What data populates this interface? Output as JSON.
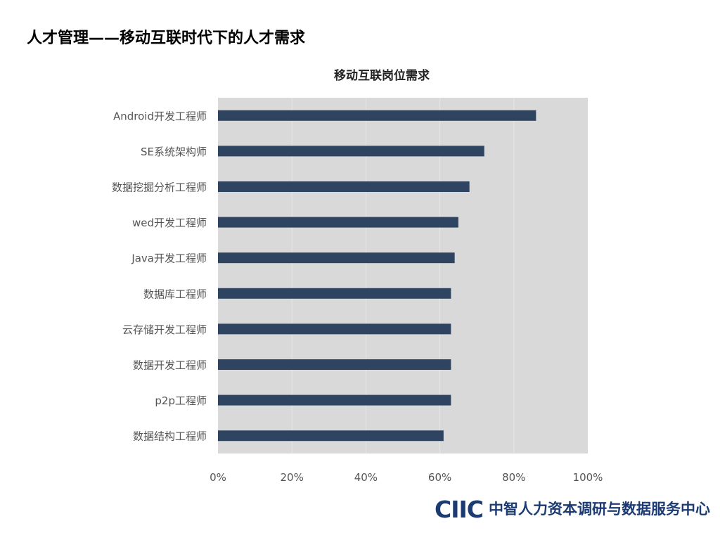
{
  "slide": {
    "title": "人才管理——移动互联时代下的人才需求"
  },
  "footer": {
    "logo": "CIIC",
    "org_name": "中智人力资本调研与数据服务中心"
  },
  "colors": {
    "bar": "#2e4461",
    "plot_background": "#d9d9d9",
    "gridline": "#e6e6e6"
  },
  "chart_data": {
    "type": "bar",
    "orientation": "horizontal",
    "title": "移动互联岗位需求",
    "xlabel": "",
    "ylabel": "",
    "categories": [
      "Android开发工程师",
      "SE系统架构师",
      "数据挖掘分析工程师",
      "wed开发工程师",
      "Java开发工程师",
      "数据库工程师",
      "云存储开发工程师",
      "数据开发工程师",
      "p2p工程师",
      "数据结构工程师"
    ],
    "values": [
      86,
      72,
      68,
      65,
      64,
      63,
      63,
      63,
      63,
      61
    ],
    "xlim": [
      0,
      100
    ],
    "xticks": [
      "0%",
      "20%",
      "40%",
      "60%",
      "80%",
      "100%"
    ],
    "grid": true,
    "legend": "none"
  }
}
